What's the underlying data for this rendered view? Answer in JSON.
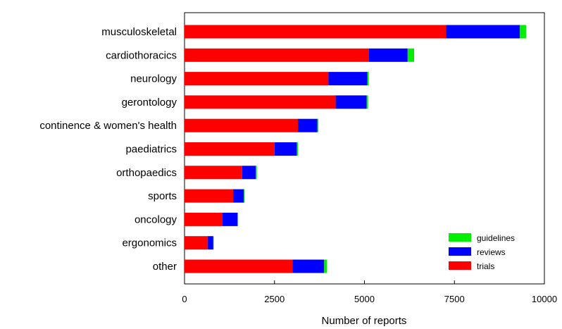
{
  "chart_data": {
    "type": "bar",
    "orientation": "horizontal",
    "stacked": true,
    "title": "",
    "xlabel": "Number of reports",
    "ylabel": "",
    "xlim": [
      0,
      10000
    ],
    "xticks": [
      0,
      2500,
      5000,
      7500,
      10000
    ],
    "grid": false,
    "legend_position": "bottom-right",
    "categories": [
      "musculoskeletal",
      "cardiothoracics",
      "neurology",
      "gerontology",
      "continence & women's health",
      "paediatrics",
      "orthopaedics",
      "sports",
      "oncology",
      "ergonomics",
      "other"
    ],
    "series": [
      {
        "name": "trials",
        "color": "#ff0000",
        "values": [
          7270,
          5120,
          4000,
          4200,
          3150,
          2500,
          1600,
          1350,
          1050,
          640,
          3000
        ]
      },
      {
        "name": "reviews",
        "color": "#0000ff",
        "values": [
          2050,
          1080,
          1080,
          860,
          540,
          620,
          380,
          300,
          420,
          160,
          880
        ]
      },
      {
        "name": "guidelines",
        "color": "#00ee00",
        "values": [
          170,
          180,
          40,
          40,
          30,
          30,
          30,
          20,
          20,
          10,
          80
        ]
      }
    ],
    "legend_order": [
      "guidelines",
      "reviews",
      "trials"
    ]
  }
}
